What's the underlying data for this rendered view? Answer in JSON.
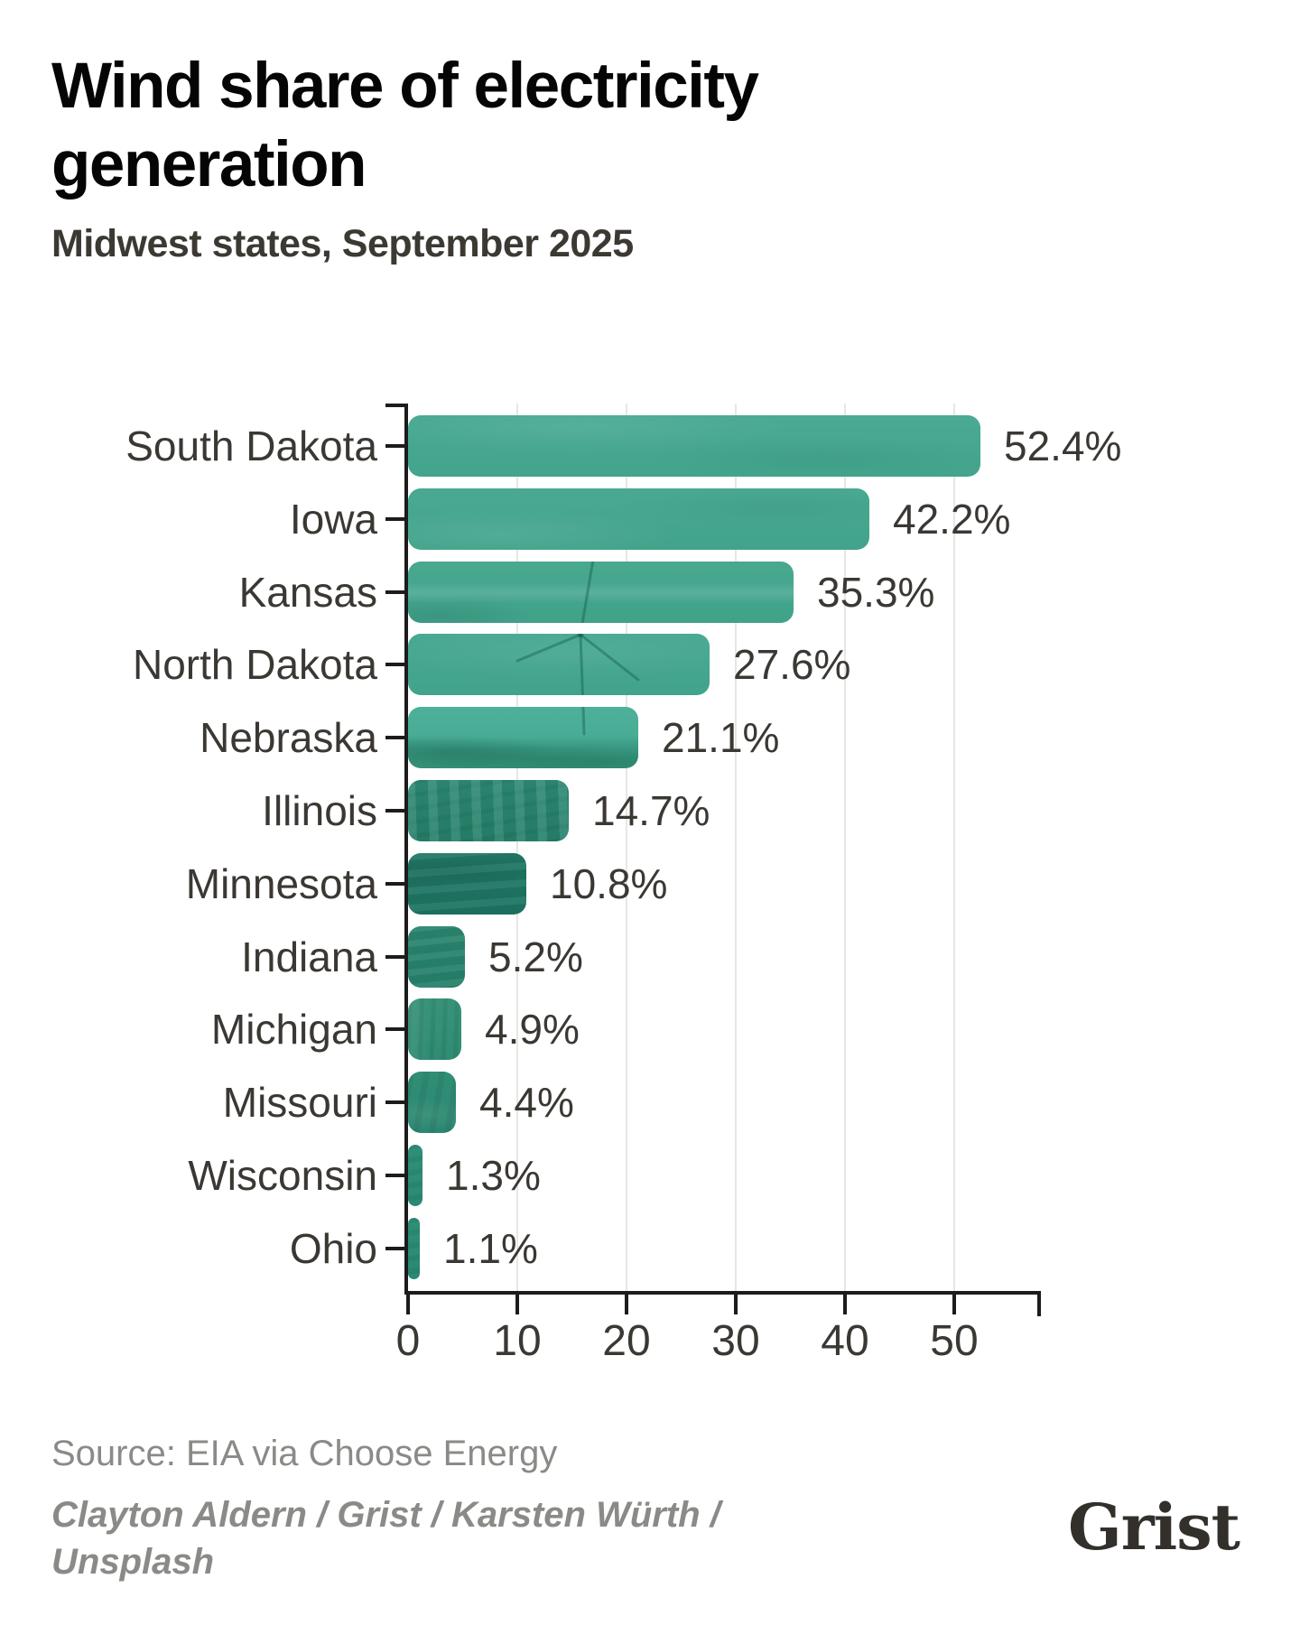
{
  "header": {
    "title": "Wind share of electricity generation",
    "subtitle": "Midwest states, September 2025"
  },
  "chart_data": {
    "type": "bar",
    "orientation": "horizontal",
    "title": "Wind share of electricity generation",
    "subtitle": "Midwest states, September 2025",
    "categories": [
      "South Dakota",
      "Iowa",
      "Kansas",
      "North Dakota",
      "Nebraska",
      "Illinois",
      "Minnesota",
      "Indiana",
      "Michigan",
      "Missouri",
      "Wisconsin",
      "Ohio"
    ],
    "values": [
      52.4,
      42.2,
      35.3,
      27.6,
      21.1,
      14.7,
      10.8,
      5.2,
      4.9,
      4.4,
      1.3,
      1.1
    ],
    "value_labels": [
      "52.4%",
      "42.2%",
      "35.3%",
      "27.6%",
      "21.1%",
      "14.7%",
      "10.8%",
      "5.2%",
      "4.9%",
      "4.4%",
      "1.3%",
      "1.1%"
    ],
    "x_ticks": [
      0,
      10,
      20,
      30,
      40,
      50
    ],
    "x_tick_labels": [
      "0",
      "10",
      "20",
      "30",
      "40",
      "50"
    ],
    "xlim": [
      0,
      57.7
    ],
    "xlabel": "",
    "ylabel": "",
    "grid": "vertical-gridlines-at-ticks",
    "legend": "none",
    "bar_texture": "wind-turbine-photo-masked-into-bars",
    "bar_colors": [
      [
        "#4aaa93",
        "#43a48c"
      ],
      [
        "#49a991",
        "#42a38b"
      ],
      [
        "#48a890",
        "#41a28a"
      ],
      [
        "#49a992",
        "#42a38b"
      ],
      [
        "#4db099",
        "#339176"
      ],
      [
        "#2e8a74",
        "#26806a"
      ],
      [
        "#227b68",
        "#1e7462"
      ],
      [
        "#2a866f",
        "#26806a"
      ],
      [
        "#389379",
        "#2f8c74"
      ],
      [
        "#318e76",
        "#2b8770"
      ],
      [
        "#2f9078",
        "#2b8a73"
      ],
      [
        "#2e8f77",
        "#2a8972"
      ]
    ]
  },
  "footer": {
    "source": "Source: EIA via Choose Energy",
    "credit": "Clayton Aldern / Grist / Karsten Würth / Unsplash",
    "logo": "Grist"
  },
  "colors": {
    "accent_teal": "#47a78f",
    "axis": "#1d1c1a",
    "gridline": "#e7e6e3",
    "title_text": "#050505",
    "label_text": "#3b3833",
    "muted_text": "#8b8a87",
    "logo_text": "#33302b",
    "background": "#ffffff"
  }
}
